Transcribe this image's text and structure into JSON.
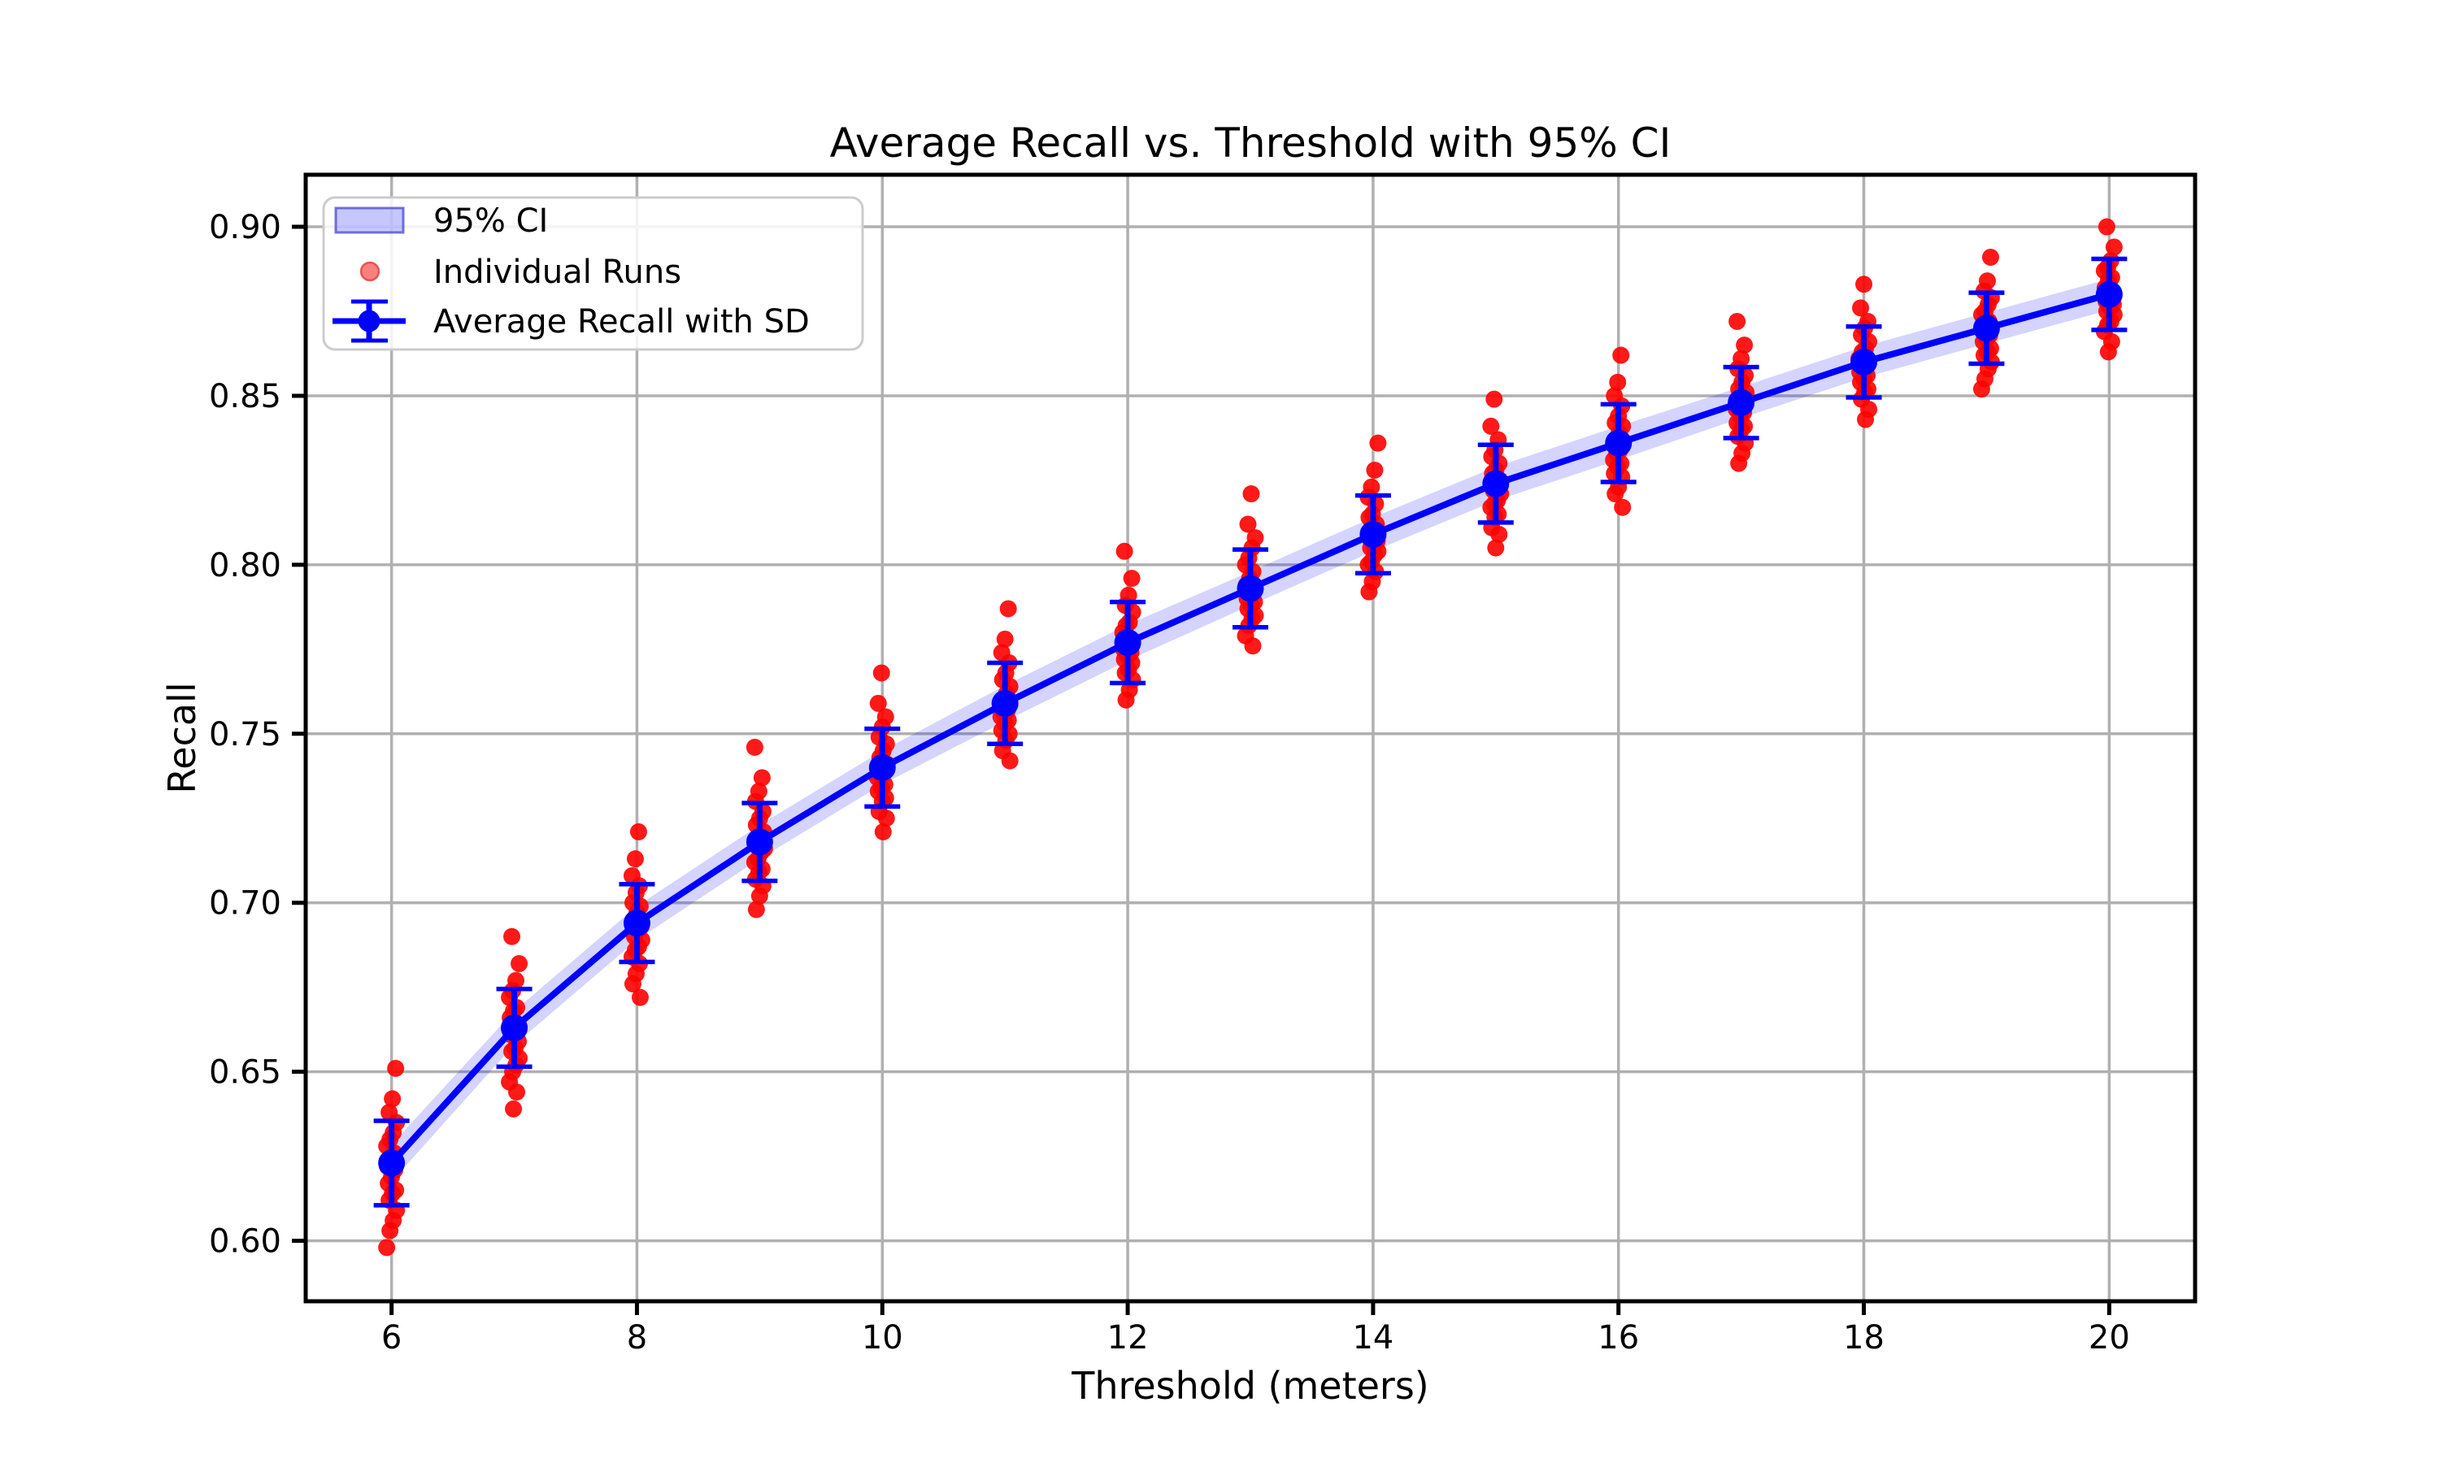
{
  "title": "Average Recall vs. Threshold with 95% CI",
  "axes": {
    "xlabel": "Threshold (meters)",
    "ylabel": "Recall",
    "x_tick_labels": [
      "6",
      "8",
      "10",
      "12",
      "14",
      "16",
      "18",
      "20"
    ],
    "y_tick_labels": [
      "0.60",
      "0.65",
      "0.70",
      "0.75",
      "0.80",
      "0.85",
      "0.90"
    ]
  },
  "legend": {
    "items": [
      {
        "label": "95% CI",
        "marker": "ci-band-swatch"
      },
      {
        "label": "Individual Runs",
        "marker": "red-dot"
      },
      {
        "label": "Average Recall with SD",
        "marker": "blue-errorbar"
      }
    ]
  },
  "colors": {
    "average_line": "#0000ff",
    "individual_runs": "#ff0000",
    "ci_band": "#0000ff",
    "grid": "#b0b0b0",
    "axis": "#000000",
    "text": "#000000",
    "legend_border": "#cccccc",
    "background": "#ffffff"
  },
  "chart_data": {
    "type": "line",
    "title": "Average Recall vs. Threshold with 95% CI",
    "xlabel": "Threshold (meters)",
    "ylabel": "Recall",
    "grid": true,
    "legend_position": "upper left",
    "xlim": [
      5.3,
      20.7
    ],
    "ylim": [
      0.5821,
      0.9154
    ],
    "x_ticks": [
      6,
      8,
      10,
      12,
      14,
      16,
      18,
      20
    ],
    "y_ticks": [
      0.6,
      0.65,
      0.7,
      0.75,
      0.8,
      0.85,
      0.9
    ],
    "x": [
      6,
      7,
      8,
      9,
      10,
      11,
      12,
      13,
      14,
      15,
      16,
      17,
      18,
      19,
      20
    ],
    "series": [
      {
        "name": "Average Recall with SD",
        "type": "errorbar-line",
        "mean": [
          0.623,
          0.663,
          0.694,
          0.718,
          0.74,
          0.759,
          0.777,
          0.793,
          0.809,
          0.824,
          0.836,
          0.848,
          0.86,
          0.87,
          0.88
        ],
        "sd": [
          0.0125,
          0.0115,
          0.0115,
          0.0115,
          0.0115,
          0.012,
          0.012,
          0.0115,
          0.0115,
          0.0115,
          0.0115,
          0.0105,
          0.0105,
          0.0105,
          0.0105
        ]
      },
      {
        "name": "95% CI",
        "type": "band",
        "ci_half_width": [
          0.0055,
          0.005,
          0.005,
          0.005,
          0.005,
          0.0053,
          0.0053,
          0.005,
          0.005,
          0.005,
          0.005,
          0.0046,
          0.0046,
          0.0046,
          0.0046
        ]
      },
      {
        "name": "Individual Runs",
        "type": "scatter",
        "runs": [
          [
            0.598,
            0.603,
            0.606,
            0.609,
            0.612,
            0.614,
            0.615,
            0.617,
            0.619,
            0.621,
            0.622,
            0.624,
            0.626,
            0.628,
            0.63,
            0.632,
            0.635,
            0.638,
            0.642,
            0.651
          ],
          [
            0.639,
            0.644,
            0.647,
            0.65,
            0.652,
            0.654,
            0.656,
            0.657,
            0.659,
            0.661,
            0.662,
            0.664,
            0.666,
            0.668,
            0.669,
            0.672,
            0.674,
            0.677,
            0.682,
            0.69
          ],
          [
            0.672,
            0.676,
            0.679,
            0.682,
            0.684,
            0.686,
            0.687,
            0.689,
            0.69,
            0.692,
            0.693,
            0.695,
            0.697,
            0.699,
            0.7,
            0.703,
            0.705,
            0.708,
            0.713,
            0.721
          ],
          [
            0.698,
            0.702,
            0.705,
            0.707,
            0.709,
            0.71,
            0.712,
            0.713,
            0.715,
            0.716,
            0.718,
            0.719,
            0.721,
            0.723,
            0.725,
            0.727,
            0.73,
            0.733,
            0.737,
            0.746
          ],
          [
            0.721,
            0.725,
            0.727,
            0.73,
            0.731,
            0.733,
            0.734,
            0.735,
            0.737,
            0.738,
            0.74,
            0.741,
            0.743,
            0.745,
            0.747,
            0.749,
            0.752,
            0.755,
            0.759,
            0.768
          ],
          [
            0.742,
            0.745,
            0.748,
            0.75,
            0.751,
            0.753,
            0.754,
            0.755,
            0.756,
            0.757,
            0.759,
            0.76,
            0.762,
            0.764,
            0.766,
            0.768,
            0.771,
            0.774,
            0.778,
            0.787
          ],
          [
            0.76,
            0.763,
            0.766,
            0.768,
            0.769,
            0.771,
            0.772,
            0.773,
            0.774,
            0.775,
            0.777,
            0.778,
            0.78,
            0.782,
            0.783,
            0.786,
            0.788,
            0.791,
            0.796,
            0.804
          ],
          [
            0.776,
            0.779,
            0.782,
            0.784,
            0.785,
            0.787,
            0.788,
            0.789,
            0.79,
            0.791,
            0.793,
            0.794,
            0.796,
            0.798,
            0.8,
            0.802,
            0.805,
            0.808,
            0.812,
            0.821
          ],
          [
            0.792,
            0.795,
            0.798,
            0.8,
            0.801,
            0.803,
            0.804,
            0.805,
            0.806,
            0.807,
            0.809,
            0.81,
            0.812,
            0.814,
            0.815,
            0.818,
            0.82,
            0.823,
            0.828,
            0.836
          ],
          [
            0.805,
            0.809,
            0.811,
            0.814,
            0.815,
            0.817,
            0.818,
            0.819,
            0.821,
            0.822,
            0.823,
            0.825,
            0.827,
            0.828,
            0.83,
            0.832,
            0.834,
            0.837,
            0.841,
            0.849
          ],
          [
            0.817,
            0.821,
            0.823,
            0.826,
            0.827,
            0.829,
            0.83,
            0.831,
            0.833,
            0.834,
            0.836,
            0.837,
            0.839,
            0.841,
            0.842,
            0.844,
            0.847,
            0.85,
            0.854,
            0.862
          ],
          [
            0.83,
            0.833,
            0.836,
            0.838,
            0.84,
            0.841,
            0.842,
            0.844,
            0.845,
            0.846,
            0.848,
            0.849,
            0.851,
            0.852,
            0.854,
            0.856,
            0.858,
            0.861,
            0.865,
            0.872
          ],
          [
            0.843,
            0.846,
            0.849,
            0.851,
            0.852,
            0.854,
            0.855,
            0.856,
            0.857,
            0.858,
            0.86,
            0.861,
            0.863,
            0.864,
            0.866,
            0.868,
            0.87,
            0.872,
            0.876,
            0.883
          ],
          [
            0.852,
            0.855,
            0.858,
            0.86,
            0.862,
            0.863,
            0.864,
            0.866,
            0.867,
            0.868,
            0.87,
            0.871,
            0.872,
            0.874,
            0.875,
            0.877,
            0.879,
            0.881,
            0.884,
            0.891
          ],
          [
            0.863,
            0.866,
            0.869,
            0.871,
            0.872,
            0.874,
            0.875,
            0.876,
            0.877,
            0.878,
            0.88,
            0.881,
            0.882,
            0.884,
            0.885,
            0.887,
            0.888,
            0.89,
            0.894,
            0.9
          ]
        ]
      }
    ]
  }
}
